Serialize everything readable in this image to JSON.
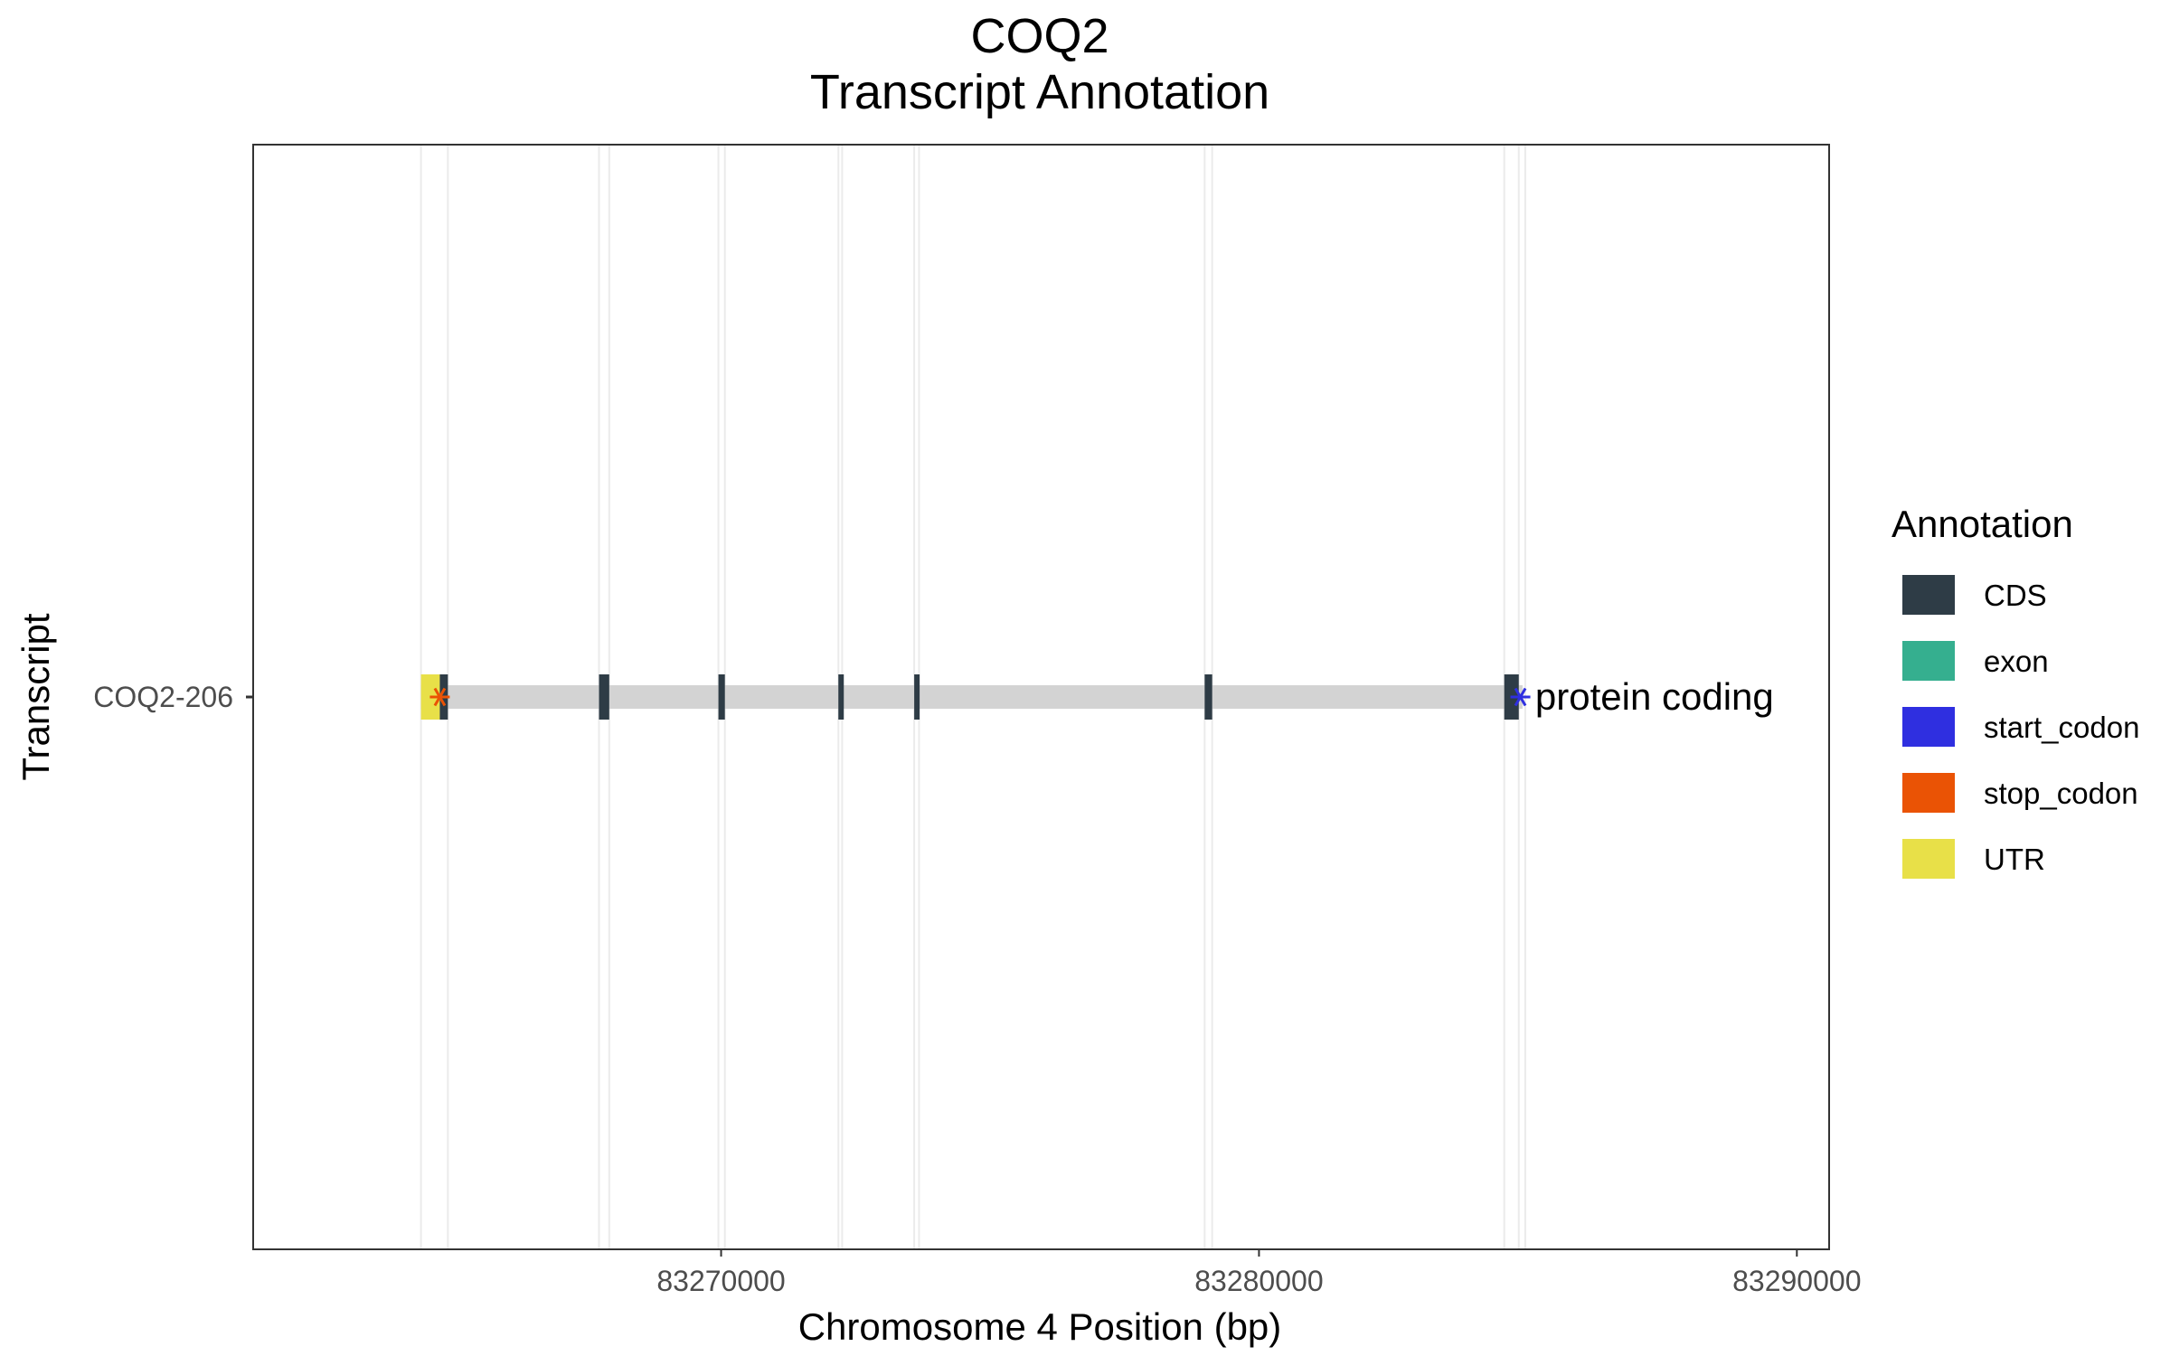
{
  "chart_data": {
    "type": "gene-track",
    "title_line1": "COQ2",
    "title_line2": "Transcript Annotation",
    "xlabel": "Chromosome 4 Position (bp)",
    "ylabel": "Transcript",
    "xlim": [
      83261300,
      83290600
    ],
    "x_ticks": [
      83270000,
      83280000,
      83290000
    ],
    "x_tick_labels": [
      "83270000",
      "83280000",
      "83290000"
    ],
    "grid": true,
    "transcript": {
      "name": "COQ2-206",
      "biotype_label": "protein coding",
      "start": 83264420,
      "end": 83284900
    },
    "features": [
      {
        "type": "UTR",
        "start": 83264420,
        "end": 83264770
      },
      {
        "type": "CDS",
        "start": 83264770,
        "end": 83264920
      },
      {
        "type": "CDS",
        "start": 83267730,
        "end": 83267920
      },
      {
        "type": "CDS",
        "start": 83269950,
        "end": 83270070
      },
      {
        "type": "CDS",
        "start": 83272180,
        "end": 83272250
      },
      {
        "type": "CDS",
        "start": 83273590,
        "end": 83273680
      },
      {
        "type": "CDS",
        "start": 83278990,
        "end": 83279130
      },
      {
        "type": "CDS",
        "start": 83284560,
        "end": 83284830
      }
    ],
    "gridlines_x": [
      83264420,
      83264920,
      83267730,
      83267920,
      83269950,
      83270070,
      83272180,
      83272250,
      83273590,
      83273680,
      83278990,
      83279130,
      83284560,
      83284830,
      83284950
    ],
    "codons": [
      {
        "type": "stop_codon",
        "position": 83264770
      },
      {
        "type": "start_codon",
        "position": 83284860
      }
    ],
    "legend": {
      "title": "Annotation",
      "placement": "right",
      "items": [
        {
          "label": "CDS",
          "color": "#2e3c46"
        },
        {
          "label": "exon",
          "color": "#35af8f"
        },
        {
          "label": "start_codon",
          "color": "#2f2fe0"
        },
        {
          "label": "stop_codon",
          "color": "#ea5305"
        },
        {
          "label": "UTR",
          "color": "#e8e048"
        }
      ]
    },
    "intron_color": "#d3d3d3"
  }
}
